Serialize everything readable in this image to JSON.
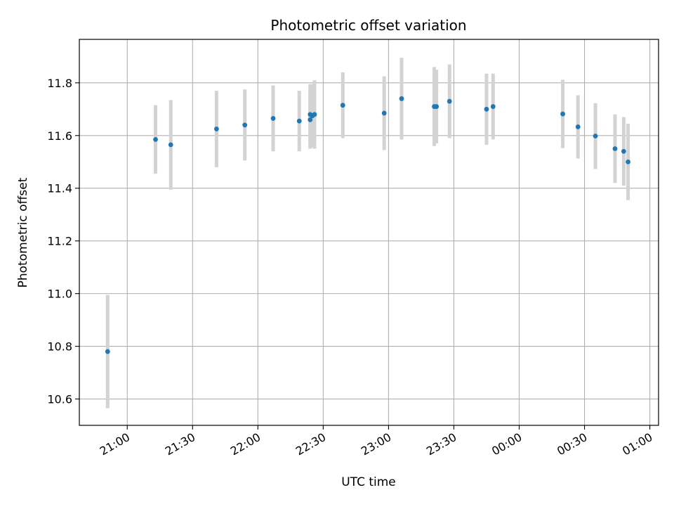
{
  "chart_data": {
    "type": "scatter",
    "title": "Photometric offset variation",
    "xlabel": "UTC time",
    "ylabel": "Photometric offset",
    "x_unit": "UTC clock time (HH:MM), axis spans midnight",
    "xlim": [
      "20:38",
      "01:04"
    ],
    "ylim": [
      10.5,
      11.965
    ],
    "x_ticks": [
      "21:00",
      "21:30",
      "22:00",
      "22:30",
      "23:00",
      "23:30",
      "00:00",
      "00:30",
      "01:00"
    ],
    "y_ticks": [
      10.6,
      10.8,
      11.0,
      11.2,
      11.4,
      11.6,
      11.8
    ],
    "y_tick_labels": [
      "10.6",
      "10.8",
      "11.0",
      "11.2",
      "11.4",
      "11.6",
      "11.8"
    ],
    "grid": true,
    "marker_color": "#1f77b4",
    "errorbar_color": "#d3d3d3",
    "series": [
      {
        "points": [
          {
            "x": "20:51",
            "y": 10.78,
            "err": 0.215
          },
          {
            "x": "21:13",
            "y": 11.585,
            "err": 0.13
          },
          {
            "x": "21:20",
            "y": 11.565,
            "err": 0.17
          },
          {
            "x": "21:41",
            "y": 11.625,
            "err": 0.145
          },
          {
            "x": "21:54",
            "y": 11.64,
            "err": 0.135
          },
          {
            "x": "22:07",
            "y": 11.665,
            "err": 0.125
          },
          {
            "x": "22:19",
            "y": 11.655,
            "err": 0.115
          },
          {
            "x": "22:24",
            "y": 11.66,
            "err": 0.11
          },
          {
            "x": "22:24",
            "y": 11.68,
            "err": 0.115
          },
          {
            "x": "22:25",
            "y": 11.675,
            "err": 0.12
          },
          {
            "x": "22:26",
            "y": 11.68,
            "err": 0.13
          },
          {
            "x": "22:39",
            "y": 11.715,
            "err": 0.125
          },
          {
            "x": "22:58",
            "y": 11.685,
            "err": 0.14
          },
          {
            "x": "23:06",
            "y": 11.74,
            "err": 0.155
          },
          {
            "x": "23:21",
            "y": 11.71,
            "err": 0.15
          },
          {
            "x": "23:22",
            "y": 11.71,
            "err": 0.14
          },
          {
            "x": "23:28",
            "y": 11.73,
            "err": 0.14
          },
          {
            "x": "23:45",
            "y": 11.7,
            "err": 0.135
          },
          {
            "x": "23:48",
            "y": 11.71,
            "err": 0.125
          },
          {
            "x": "00:20",
            "y": 11.682,
            "err": 0.13
          },
          {
            "x": "00:27",
            "y": 11.633,
            "err": 0.12
          },
          {
            "x": "00:35",
            "y": 11.598,
            "err": 0.125
          },
          {
            "x": "00:44",
            "y": 11.55,
            "err": 0.13
          },
          {
            "x": "00:48",
            "y": 11.54,
            "err": 0.13
          },
          {
            "x": "00:50",
            "y": 11.5,
            "err": 0.145
          }
        ]
      }
    ]
  }
}
